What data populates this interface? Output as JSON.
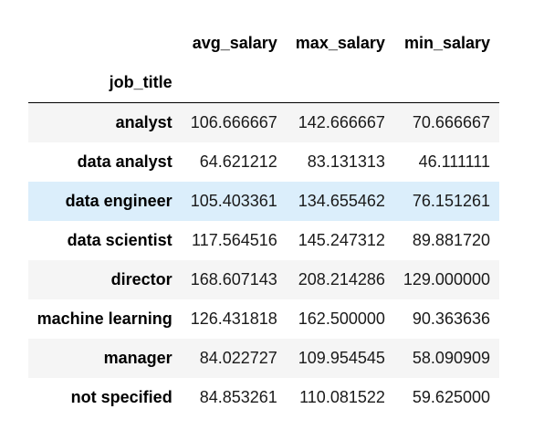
{
  "table": {
    "index_name": "job_title",
    "columns": [
      "avg_salary",
      "max_salary",
      "min_salary"
    ],
    "rows": [
      {
        "label": "analyst",
        "values": [
          "106.666667",
          "142.666667",
          "70.666667"
        ]
      },
      {
        "label": "data analyst",
        "values": [
          "64.621212",
          "83.131313",
          "46.111111"
        ]
      },
      {
        "label": "data engineer",
        "values": [
          "105.403361",
          "134.655462",
          "76.151261"
        ]
      },
      {
        "label": "data scientist",
        "values": [
          "117.564516",
          "145.247312",
          "89.881720"
        ]
      },
      {
        "label": "director",
        "values": [
          "168.607143",
          "208.214286",
          "129.000000"
        ]
      },
      {
        "label": "machine learning",
        "values": [
          "126.431818",
          "162.500000",
          "90.363636"
        ]
      },
      {
        "label": "manager",
        "values": [
          "84.022727",
          "109.954545",
          "58.090909"
        ]
      },
      {
        "label": "not specified",
        "values": [
          "84.853261",
          "110.081522",
          "59.625000"
        ]
      }
    ]
  },
  "colors": {
    "row_stripe": "#f5f5f5",
    "row_hover": "#dbeefb",
    "header_rule": "#000000"
  }
}
